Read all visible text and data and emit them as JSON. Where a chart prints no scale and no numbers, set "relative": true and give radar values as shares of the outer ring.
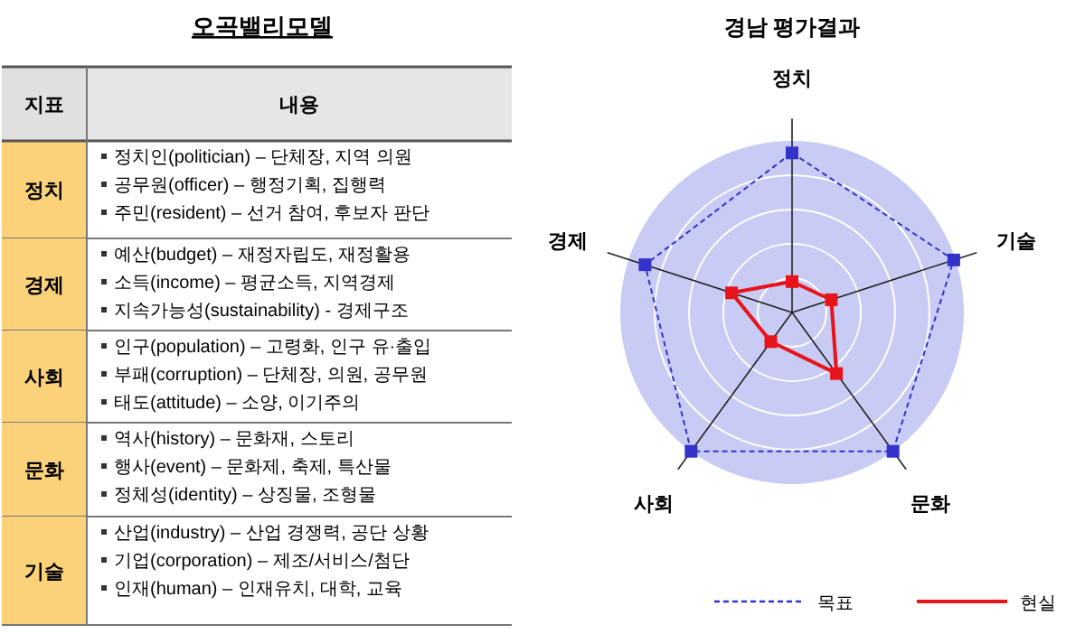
{
  "chart_data": [
    {
      "type": "other",
      "title": "오곡밸리모델",
      "categories": [
        "정치",
        "경제",
        "사회",
        "문화",
        "기술"
      ],
      "annotations": [
        "지표",
        "내용",
        "정치인(politician) – 단체장, 지역 의원",
        "공무원(officer) – 행정기획, 집행력",
        "주민(resident) – 선거 참여, 후보자 판단",
        "예산(budget) – 재정자립도, 재정활용",
        "소득(income) – 평균소득, 지역경제",
        "지속가능성(sustainability) - 경제구조",
        "인구(population) – 고령화, 인구 유·출입",
        "부패(corruption) – 단체장, 의원, 공무원",
        "태도(attitude) – 소양, 이기주의",
        "역사(history) – 문화재, 스토리",
        "행사(event) – 문화제, 축제, 특산물",
        "정체성(identity) – 상징물, 조형물",
        "산업(industry) – 산업 경쟁력, 공단 상황",
        "기업(corporation) – 제조/서비스/첨단",
        "인재(human) – 인재유치, 대학, 교육"
      ]
    },
    {
      "type": "radar",
      "title": "경남 평가결과",
      "relative": true,
      "grid": true,
      "legend": "bottom",
      "marker": "square",
      "categories": [
        "정치",
        "기술",
        "문화",
        "사회",
        "경제"
      ],
      "series": [
        {
          "name": "목표",
          "color": "#3333cc",
          "line_style": "dashed",
          "values": [
            0.93,
            0.99,
            1.0,
            1.0,
            0.9
          ]
        },
        {
          "name": "현실",
          "color": "#e8141c",
          "line_style": "solid",
          "values": [
            0.18,
            0.24,
            0.44,
            0.21,
            0.37
          ]
        }
      ]
    }
  ]
}
